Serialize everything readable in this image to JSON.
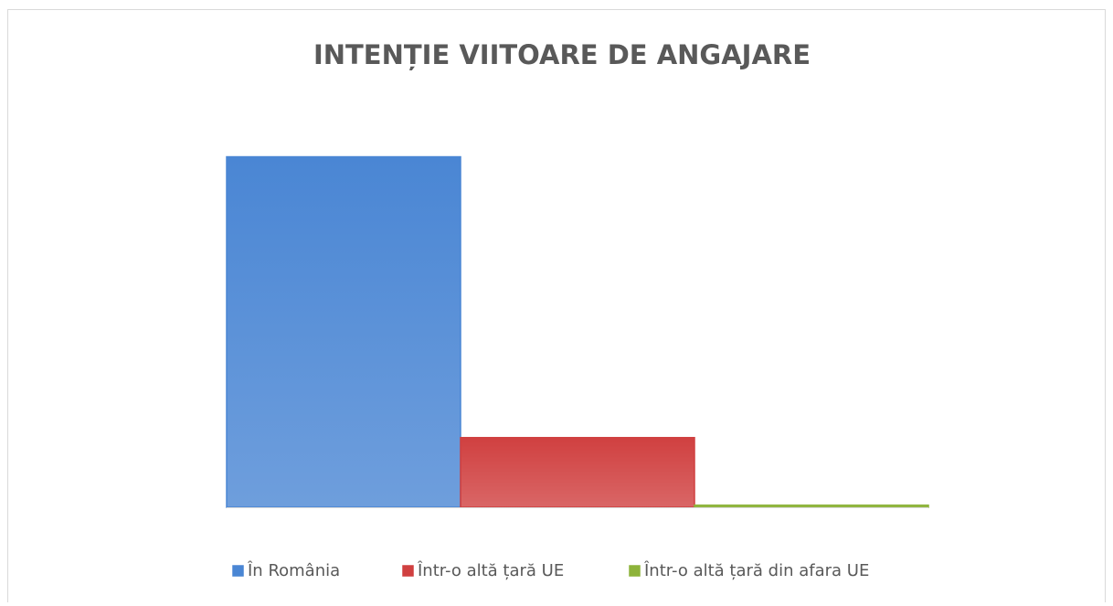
{
  "chart_data": {
    "type": "bar",
    "title": "INTENȚIE VIITOARE DE ANGAJARE",
    "categories": [
      null
    ],
    "series": [
      {
        "name": "În România",
        "color": "#4a86d4",
        "values": [
          83
        ]
      },
      {
        "name": "Într-o altă țară UE",
        "color": "#d04040",
        "values": [
          16.5
        ]
      },
      {
        "name": "Într-o altă țară din afara UE",
        "color": "#8db33a",
        "values": [
          0.5
        ]
      }
    ],
    "legend": "bottom"
  }
}
